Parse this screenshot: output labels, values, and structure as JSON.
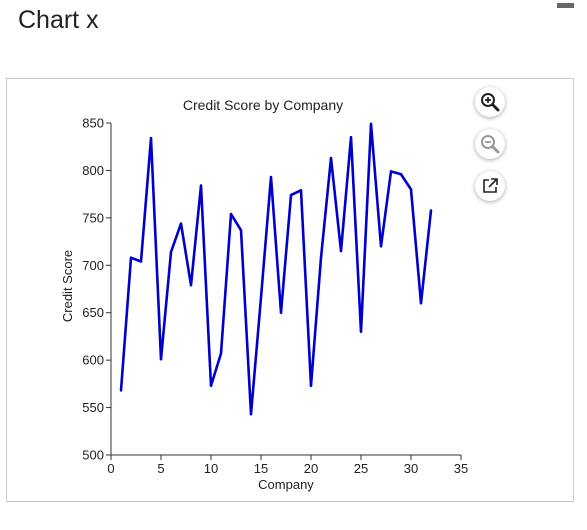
{
  "page": {
    "title": "Chart x"
  },
  "toolbar": {
    "zoom_in_icon": "zoom-in-icon",
    "zoom_out_icon": "zoom-out-icon",
    "open_external_icon": "open-external-icon"
  },
  "colors": {
    "series": "#0000cc",
    "axis": "#333333",
    "zoom_in": "#222222",
    "zoom_out": "#9a9a9a"
  },
  "chart_data": {
    "type": "line",
    "title": "Credit Score by Company",
    "xlabel": "Company",
    "ylabel": "Credit Score",
    "xlim": [
      0,
      35
    ],
    "ylim": [
      500,
      850
    ],
    "xticks": [
      0,
      5,
      10,
      15,
      20,
      25,
      30,
      35
    ],
    "yticks": [
      500,
      550,
      600,
      650,
      700,
      750,
      800,
      850
    ],
    "grid": false,
    "legend": "none",
    "x": [
      1,
      2,
      3,
      4,
      5,
      6,
      7,
      8,
      9,
      10,
      11,
      12,
      13,
      14,
      15,
      16,
      17,
      18,
      19,
      20,
      21,
      22,
      23,
      24,
      25,
      26,
      27,
      28,
      29,
      30,
      31,
      32
    ],
    "series": [
      {
        "values": [
          568,
          708,
          704,
          834,
          601,
          714,
          744,
          679,
          784,
          573,
          607,
          754,
          737,
          543,
          666,
          793,
          650,
          774,
          779,
          573,
          708,
          813,
          715,
          835,
          630,
          849,
          720,
          799,
          796,
          780,
          660,
          758
        ]
      }
    ]
  }
}
